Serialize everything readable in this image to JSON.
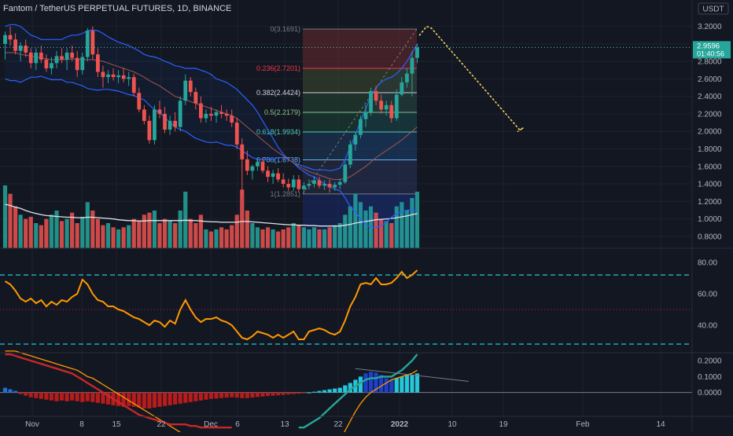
{
  "header": {
    "title": "Fantom / TetherUS PERPETUAL FUTURES, 1D, BINANCE",
    "currency": "USDT"
  },
  "price_badge": {
    "price": "2.9596",
    "countdown": "01:40:56"
  },
  "colors": {
    "background": "#131722",
    "up": "#26a69a",
    "down": "#ef5350",
    "bb": "#2962ff",
    "basis": "#a1574d",
    "volume_ma": "#e0e3eb",
    "rsi": "#ff9800",
    "rsi_band": "#26c6da",
    "histogram_pos": "#26c6da",
    "histogram_neg": "#b71c1c",
    "macd_line": "#c62828",
    "signal_line": "#ff9800",
    "current_price": "#4dd0b8",
    "projection": "#f0d060"
  },
  "chart_data": [
    {
      "type": "candlestick",
      "name": "price",
      "x_tick_labels": [
        "Nov",
        "8",
        "15",
        "22",
        "Dec",
        "6",
        "13",
        "22",
        "2022",
        "10",
        "19",
        "Feb",
        "14"
      ],
      "y_tick_labels": [
        "0.8000",
        "1.0000",
        "1.2000",
        "1.4000",
        "1.6000",
        "1.8000",
        "2.0000",
        "2.2000",
        "2.4000",
        "2.6000",
        "2.8000",
        "3.0000",
        "3.2000"
      ],
      "ylim": [
        0.7,
        3.25
      ],
      "candles": [
        [
          3.0,
          3.14,
          2.82,
          3.1
        ],
        [
          3.1,
          3.2,
          2.98,
          3.05
        ],
        [
          3.05,
          3.12,
          2.88,
          2.92
        ],
        [
          2.92,
          3.02,
          2.8,
          2.98
        ],
        [
          2.98,
          3.05,
          2.85,
          2.9
        ],
        [
          2.9,
          2.95,
          2.72,
          2.78
        ],
        [
          2.78,
          2.95,
          2.7,
          2.9
        ],
        [
          2.9,
          2.98,
          2.78,
          2.82
        ],
        [
          2.82,
          2.88,
          2.68,
          2.72
        ],
        [
          2.72,
          2.85,
          2.65,
          2.78
        ],
        [
          2.78,
          2.92,
          2.72,
          2.86
        ],
        [
          2.86,
          2.95,
          2.78,
          2.82
        ],
        [
          2.82,
          2.95,
          2.7,
          2.9
        ],
        [
          2.9,
          2.98,
          2.8,
          2.84
        ],
        [
          2.84,
          2.92,
          2.62,
          2.7
        ],
        [
          2.7,
          2.9,
          2.65,
          2.85
        ],
        [
          2.85,
          3.18,
          2.8,
          3.15
        ],
        [
          3.15,
          3.2,
          2.82,
          2.88
        ],
        [
          2.88,
          2.95,
          2.62,
          2.68
        ],
        [
          2.68,
          2.75,
          2.5,
          2.62
        ],
        [
          2.62,
          2.7,
          2.55,
          2.65
        ],
        [
          2.65,
          2.72,
          2.58,
          2.62
        ],
        [
          2.62,
          2.7,
          2.55,
          2.64
        ],
        [
          2.64,
          2.72,
          2.56,
          2.6
        ],
        [
          2.6,
          2.68,
          2.52,
          2.62
        ],
        [
          2.62,
          2.66,
          2.4,
          2.44
        ],
        [
          2.44,
          2.5,
          2.22,
          2.25
        ],
        [
          2.25,
          2.3,
          2.08,
          2.12
        ],
        [
          2.12,
          2.18,
          1.86,
          1.9
        ],
        [
          1.9,
          2.3,
          1.85,
          2.25
        ],
        [
          2.25,
          2.35,
          2.15,
          2.2
        ],
        [
          2.2,
          2.28,
          1.98,
          2.02
        ],
        [
          2.02,
          2.18,
          1.96,
          2.12
        ],
        [
          2.12,
          2.22,
          2.0,
          2.05
        ],
        [
          2.05,
          2.4,
          2.0,
          2.35
        ],
        [
          2.35,
          2.65,
          2.3,
          2.58
        ],
        [
          2.58,
          2.62,
          2.4,
          2.45
        ],
        [
          2.45,
          2.5,
          2.25,
          2.32
        ],
        [
          2.32,
          2.4,
          2.1,
          2.15
        ],
        [
          2.15,
          2.25,
          2.1,
          2.2
        ],
        [
          2.2,
          2.28,
          2.12,
          2.18
        ],
        [
          2.18,
          2.25,
          2.1,
          2.22
        ],
        [
          2.22,
          2.3,
          2.15,
          2.2
        ],
        [
          2.2,
          2.25,
          2.12,
          2.18
        ],
        [
          2.18,
          2.25,
          2.05,
          2.1
        ],
        [
          2.1,
          2.15,
          1.8,
          1.85
        ],
        [
          1.85,
          1.92,
          1.26,
          1.68
        ],
        [
          1.68,
          1.78,
          1.5,
          1.55
        ],
        [
          1.55,
          1.62,
          1.45,
          1.6
        ],
        [
          1.6,
          1.7,
          1.55,
          1.65
        ],
        [
          1.65,
          1.7,
          1.52,
          1.55
        ],
        [
          1.55,
          1.6,
          1.42,
          1.48
        ],
        [
          1.48,
          1.56,
          1.4,
          1.52
        ],
        [
          1.52,
          1.58,
          1.42,
          1.45
        ],
        [
          1.45,
          1.52,
          1.36,
          1.4
        ],
        [
          1.4,
          1.46,
          1.32,
          1.36
        ],
        [
          1.36,
          1.5,
          1.32,
          1.45
        ],
        [
          1.45,
          1.5,
          1.3,
          1.34
        ],
        [
          1.34,
          1.42,
          1.3,
          1.38
        ],
        [
          1.38,
          1.45,
          1.34,
          1.4
        ],
        [
          1.4,
          1.48,
          1.36,
          1.44
        ],
        [
          1.44,
          1.48,
          1.35,
          1.38
        ],
        [
          1.38,
          1.44,
          1.33,
          1.4
        ],
        [
          1.4,
          1.45,
          1.3,
          1.36
        ],
        [
          1.36,
          1.42,
          1.32,
          1.39
        ],
        [
          1.39,
          1.46,
          1.34,
          1.42
        ],
        [
          1.42,
          1.66,
          1.4,
          1.62
        ],
        [
          1.62,
          1.9,
          1.58,
          1.85
        ],
        [
          1.85,
          2.0,
          1.78,
          1.96
        ],
        [
          1.96,
          2.18,
          1.92,
          2.14
        ],
        [
          2.14,
          2.3,
          2.05,
          2.22
        ],
        [
          2.22,
          2.5,
          2.18,
          2.46
        ],
        [
          2.46,
          2.52,
          2.3,
          2.35
        ],
        [
          2.35,
          2.42,
          2.2,
          2.25
        ],
        [
          2.25,
          2.35,
          2.18,
          2.3
        ],
        [
          2.3,
          2.35,
          2.1,
          2.15
        ],
        [
          2.15,
          2.48,
          2.12,
          2.42
        ],
        [
          2.42,
          2.62,
          2.4,
          2.56
        ],
        [
          2.56,
          2.72,
          2.5,
          2.66
        ],
        [
          2.66,
          2.92,
          2.4,
          2.84
        ],
        [
          2.84,
          3.0,
          2.78,
          2.96
        ]
      ],
      "bb_upper": [
        3.2,
        3.22,
        3.22,
        3.2,
        3.15,
        3.1,
        3.08,
        3.05,
        3.05,
        3.05,
        3.05,
        3.05,
        3.08,
        3.1,
        3.1,
        3.12,
        3.15,
        3.16,
        3.15,
        3.12,
        3.08,
        3.05,
        3.02,
        3.0,
        2.98,
        2.95,
        2.92,
        2.88,
        2.86,
        2.85,
        2.83,
        2.8,
        2.78,
        2.75,
        2.74,
        2.72,
        2.72,
        2.72,
        2.7,
        2.68,
        2.65,
        2.6,
        2.58,
        2.56,
        2.52,
        2.48,
        2.42,
        2.36,
        2.3,
        2.22,
        2.12,
        2.02,
        1.92,
        1.82,
        1.74,
        1.68,
        1.64,
        1.62,
        1.6,
        1.58,
        1.56,
        1.56,
        1.56,
        1.55,
        1.56,
        1.58,
        1.68,
        1.82,
        1.96,
        2.12,
        2.26,
        2.4,
        2.5,
        2.56,
        2.6,
        2.62,
        2.66,
        2.72,
        2.8,
        2.9,
        3.0
      ],
      "bb_basis": [
        2.9,
        2.9,
        2.9,
        2.88,
        2.87,
        2.86,
        2.85,
        2.84,
        2.83,
        2.82,
        2.82,
        2.82,
        2.82,
        2.83,
        2.82,
        2.82,
        2.82,
        2.82,
        2.81,
        2.8,
        2.78,
        2.76,
        2.74,
        2.72,
        2.7,
        2.68,
        2.65,
        2.62,
        2.58,
        2.55,
        2.52,
        2.48,
        2.44,
        2.4,
        2.38,
        2.36,
        2.34,
        2.32,
        2.3,
        2.28,
        2.26,
        2.24,
        2.22,
        2.2,
        2.18,
        2.15,
        2.1,
        2.05,
        2.0,
        1.95,
        1.9,
        1.85,
        1.8,
        1.76,
        1.72,
        1.68,
        1.64,
        1.6,
        1.57,
        1.54,
        1.52,
        1.5,
        1.48,
        1.46,
        1.45,
        1.45,
        1.46,
        1.48,
        1.52,
        1.56,
        1.6,
        1.65,
        1.7,
        1.74,
        1.78,
        1.82,
        1.86,
        1.9,
        1.95,
        2.0,
        2.05
      ],
      "bb_lower": [
        2.6,
        2.58,
        2.58,
        2.56,
        2.59,
        2.62,
        2.62,
        2.63,
        2.61,
        2.59,
        2.59,
        2.59,
        2.56,
        2.56,
        2.54,
        2.52,
        2.49,
        2.48,
        2.47,
        2.48,
        2.48,
        2.47,
        2.46,
        2.44,
        2.42,
        2.41,
        2.38,
        2.36,
        2.3,
        2.25,
        2.21,
        2.16,
        2.1,
        2.05,
        2.02,
        2.0,
        1.96,
        1.92,
        1.9,
        1.88,
        1.87,
        1.88,
        1.86,
        1.84,
        1.84,
        1.82,
        1.78,
        1.74,
        1.7,
        1.68,
        1.68,
        1.68,
        1.68,
        1.7,
        1.7,
        1.68,
        1.64,
        1.58,
        1.54,
        1.5,
        1.48,
        1.44,
        1.4,
        1.37,
        1.34,
        1.32,
        1.24,
        1.14,
        1.08,
        1.0,
        0.94,
        0.9,
        0.9,
        0.92,
        0.96,
        1.02,
        1.06,
        1.08,
        1.1,
        1.1,
        1.1
      ],
      "volume": [
        1.5,
        1.3,
        1.0,
        0.8,
        0.7,
        0.75,
        0.6,
        0.55,
        0.7,
        0.8,
        0.9,
        0.65,
        0.7,
        0.85,
        0.6,
        0.75,
        1.1,
        0.9,
        0.7,
        0.55,
        0.6,
        0.5,
        0.45,
        0.5,
        0.55,
        0.7,
        0.65,
        0.8,
        0.85,
        0.9,
        0.6,
        0.7,
        0.65,
        0.6,
        0.9,
        1.35,
        0.7,
        0.6,
        0.8,
        0.45,
        0.4,
        0.45,
        0.5,
        0.45,
        0.55,
        0.8,
        1.4,
        0.9,
        0.6,
        0.5,
        0.45,
        0.5,
        0.45,
        0.4,
        0.45,
        0.5,
        0.6,
        0.55,
        0.5,
        0.45,
        0.5,
        0.45,
        0.45,
        0.5,
        0.55,
        0.6,
        0.8,
        1.0,
        1.3,
        1.1,
        0.9,
        1.0,
        0.85,
        0.7,
        0.65,
        0.6,
        1.0,
        1.1,
        0.9,
        1.2,
        1.35
      ],
      "volume_ma": [
        1.05,
        1.02,
        0.98,
        0.95,
        0.9,
        0.86,
        0.83,
        0.8,
        0.78,
        0.77,
        0.76,
        0.75,
        0.74,
        0.74,
        0.73,
        0.73,
        0.74,
        0.74,
        0.73,
        0.72,
        0.71,
        0.7,
        0.68,
        0.67,
        0.66,
        0.66,
        0.65,
        0.65,
        0.66,
        0.66,
        0.66,
        0.66,
        0.66,
        0.66,
        0.66,
        0.67,
        0.66,
        0.66,
        0.65,
        0.64,
        0.63,
        0.63,
        0.62,
        0.62,
        0.62,
        0.62,
        0.64,
        0.64,
        0.63,
        0.62,
        0.61,
        0.6,
        0.59,
        0.58,
        0.57,
        0.56,
        0.56,
        0.55,
        0.55,
        0.54,
        0.54,
        0.53,
        0.53,
        0.53,
        0.53,
        0.53,
        0.55,
        0.57,
        0.6,
        0.62,
        0.64,
        0.66,
        0.68,
        0.69,
        0.7,
        0.71,
        0.73,
        0.75,
        0.77,
        0.8,
        0.83
      ],
      "fibonacci": [
        {
          "label": "0(3.1691)",
          "level": 3.1691,
          "color": "#787b86",
          "fill": "#6b2a2f"
        },
        {
          "label": "0.236(2.7201)",
          "level": 2.7201,
          "color": "#f23645",
          "fill": "#3e4a2c"
        },
        {
          "label": "0.382(2.4424)",
          "level": 2.4424,
          "color": "#d1d4dc",
          "fill": "#26452f"
        },
        {
          "label": "0.5(2.2179)",
          "level": 2.2179,
          "color": "#81c784",
          "fill": "#1c4537"
        },
        {
          "label": "0.618(1.9934)",
          "level": 1.9934,
          "color": "#4dd0b8",
          "fill": "#1e3d5c"
        },
        {
          "label": "0.786(1.6738)",
          "level": 1.6738,
          "color": "#64b5f6",
          "fill": "#2a2f45"
        },
        {
          "label": "1(1.2851)",
          "level": 1.2851,
          "color": "#787b86",
          "fill": null
        }
      ],
      "current_price": 2.9596
    },
    {
      "type": "line",
      "name": "rsi",
      "y_tick_labels": [
        "40.00",
        "60.00",
        "80.00"
      ],
      "ylim": [
        24,
        86
      ],
      "bands": [
        72,
        50,
        28
      ],
      "values": [
        68,
        66,
        62,
        57,
        55,
        57,
        54,
        56,
        52,
        55,
        53,
        56,
        55,
        58,
        60,
        69,
        66,
        60,
        56,
        55,
        52,
        52,
        50,
        49,
        47,
        45,
        44,
        42,
        40,
        43,
        42,
        39,
        43,
        41,
        50,
        56,
        50,
        45,
        42,
        44,
        44,
        45,
        43,
        42,
        40,
        36,
        32,
        31,
        33,
        36,
        35,
        34,
        32,
        34,
        32,
        34,
        36,
        31,
        31,
        36,
        37,
        38,
        37,
        35,
        34,
        36,
        43,
        52,
        58,
        66,
        67,
        66,
        70,
        66,
        66,
        67,
        70,
        74,
        70,
        72,
        75
      ]
    },
    {
      "type": "bar",
      "name": "macd",
      "y_tick_labels": [
        "0.0000",
        "0.1000",
        "0.2000"
      ],
      "ylim": [
        -0.14,
        0.24
      ],
      "histogram": [
        0.03,
        0.02,
        0.01,
        -0.01,
        -0.02,
        -0.03,
        -0.035,
        -0.04,
        -0.045,
        -0.05,
        -0.055,
        -0.05,
        -0.055,
        -0.05,
        -0.055,
        -0.06,
        -0.055,
        -0.06,
        -0.065,
        -0.07,
        -0.075,
        -0.08,
        -0.085,
        -0.09,
        -0.085,
        -0.09,
        -0.095,
        -0.1,
        -0.1,
        -0.095,
        -0.09,
        -0.085,
        -0.08,
        -0.075,
        -0.07,
        -0.065,
        -0.06,
        -0.055,
        -0.05,
        -0.045,
        -0.04,
        -0.038,
        -0.035,
        -0.032,
        -0.03,
        -0.032,
        -0.035,
        -0.035,
        -0.032,
        -0.028,
        -0.025,
        -0.022,
        -0.02,
        -0.018,
        -0.015,
        -0.012,
        -0.01,
        -0.008,
        -0.005,
        0.0,
        0.005,
        0.01,
        0.015,
        0.02,
        0.025,
        0.03,
        0.045,
        0.06,
        0.08,
        0.1,
        0.12,
        0.13,
        0.125,
        0.11,
        0.09,
        0.08,
        0.09,
        0.1,
        0.11,
        0.11,
        0.12
      ],
      "macd_line": [
        0.24,
        0.24,
        0.23,
        0.22,
        0.21,
        0.2,
        0.19,
        0.18,
        0.17,
        0.16,
        0.15,
        0.14,
        0.13,
        0.12,
        0.1,
        0.08,
        0.06,
        0.04,
        0.02,
        0.0,
        -0.02,
        -0.04,
        -0.06,
        -0.08,
        -0.1,
        -0.12,
        -0.14,
        -0.15,
        -0.16,
        -0.17,
        -0.18,
        -0.19,
        -0.2,
        -0.2,
        -0.2,
        -0.2,
        -0.21,
        -0.21,
        -0.22,
        -0.22,
        -0.22,
        -0.22,
        -0.22,
        -0.22,
        -0.22,
        -0.22,
        -0.22,
        -0.22,
        -0.22,
        -0.22,
        -0.22,
        -0.22,
        -0.22,
        -0.22,
        -0.22,
        -0.22,
        -0.22,
        -0.22,
        -0.22,
        -0.2,
        -0.18,
        -0.16,
        -0.13,
        -0.1,
        -0.07,
        -0.04,
        -0.01,
        0.02,
        0.04,
        0.06,
        0.08,
        0.09,
        0.09,
        0.1,
        0.1,
        0.1,
        0.12,
        0.14,
        0.17,
        0.2,
        0.24
      ],
      "signal_line": [
        0.26,
        0.26,
        0.26,
        0.25,
        0.24,
        0.23,
        0.22,
        0.21,
        0.2,
        0.19,
        0.18,
        0.17,
        0.16,
        0.15,
        0.14,
        0.12,
        0.1,
        0.09,
        0.07,
        0.05,
        0.03,
        0.01,
        -0.01,
        -0.03,
        -0.05,
        -0.07,
        -0.09,
        -0.11,
        -0.13,
        -0.15,
        -0.17,
        -0.19,
        -0.21,
        -0.23,
        -0.25,
        -0.27,
        -0.3,
        -0.32,
        -0.34,
        -0.36,
        -0.36,
        -0.36,
        -0.36,
        -0.36,
        -0.36,
        -0.36,
        -0.36,
        -0.36,
        -0.36,
        -0.36,
        -0.36,
        -0.36,
        -0.36,
        -0.36,
        -0.36,
        -0.36,
        -0.36,
        -0.36,
        -0.36,
        -0.36,
        -0.36,
        -0.36,
        -0.36,
        -0.36,
        -0.34,
        -0.3,
        -0.24,
        -0.18,
        -0.12,
        -0.07,
        -0.03,
        0.0,
        0.02,
        0.04,
        0.06,
        0.08,
        0.09,
        0.1,
        0.11,
        0.12,
        0.14
      ]
    }
  ]
}
